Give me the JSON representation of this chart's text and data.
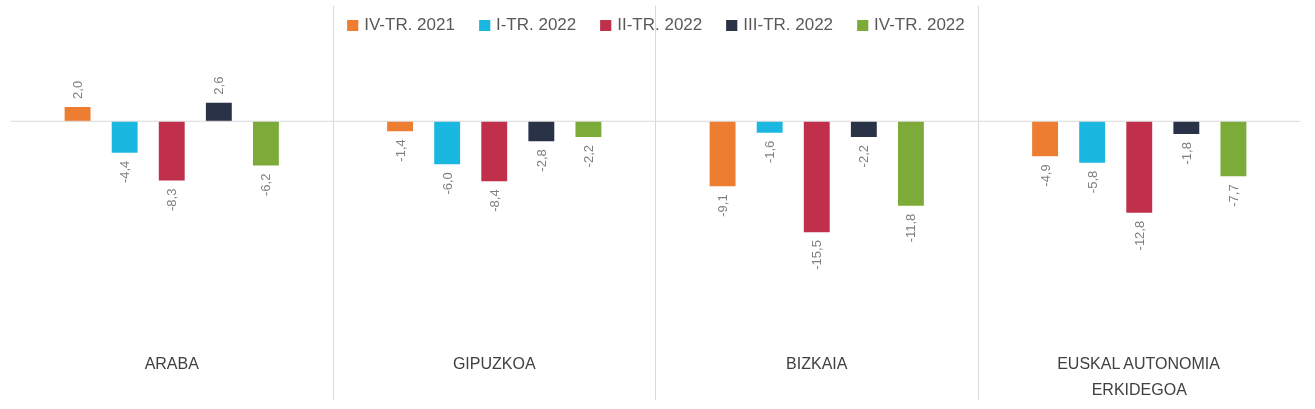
{
  "chart_data": {
    "type": "bar",
    "categories": [
      "ARABA",
      "GIPUZKOA",
      "BIZKAIA",
      "EUSKAL AUTONOMIA ERKIDEGOA"
    ],
    "legend": "top",
    "series": [
      {
        "name": "IV-TR. 2021",
        "color": "#ed7d31",
        "values": [
          2.0,
          -1.4,
          -9.1,
          -4.9
        ],
        "value_labels": [
          "2,0",
          "-1,4",
          "-9,1",
          "-4,9"
        ]
      },
      {
        "name": "I-TR. 2022",
        "color": "#1ab8e0",
        "values": [
          -4.4,
          -6.0,
          -1.6,
          -5.8
        ],
        "value_labels": [
          "-4,4",
          "-6,0",
          "-1,6",
          "-5,8"
        ]
      },
      {
        "name": "II-TR. 2022",
        "color": "#c0304a",
        "values": [
          -8.3,
          -8.4,
          -15.5,
          -12.8
        ],
        "value_labels": [
          "-8,3",
          "-8,4",
          "-15,5",
          "-12,8"
        ]
      },
      {
        "name": "III-TR. 2022",
        "color": "#2a3248",
        "values": [
          2.6,
          -2.8,
          -2.2,
          -1.8
        ],
        "value_labels": [
          "2,6",
          "-2,8",
          "-2,2",
          "-1,8"
        ]
      },
      {
        "name": "IV-TR. 2022",
        "color": "#7cab3a",
        "values": [
          -6.2,
          -2.2,
          -11.8,
          -7.7
        ],
        "value_labels": [
          "-6,2",
          "-2,2",
          "-11,8",
          "-7,7"
        ]
      }
    ]
  }
}
